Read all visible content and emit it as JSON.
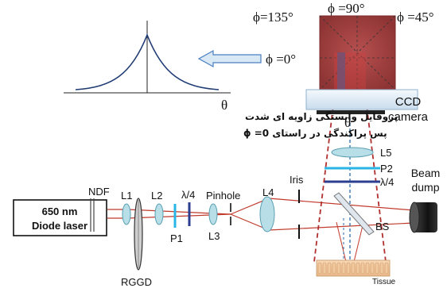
{
  "labels": {
    "laser_line1": "650 nm",
    "laser_line2": "Diode laser",
    "ndf": "NDF",
    "l1": "L1",
    "l2": "L2",
    "quarter_wave_1": "λ/4",
    "pinhole": "Pinhole",
    "l3": "L3",
    "p1": "P1",
    "l4": "L4",
    "iris": "Iris",
    "rggd": "RGGD",
    "ccd_line1": "CCD",
    "ccd_line2": "camera",
    "theta_beam": "θ",
    "l5": "L5",
    "p2": "P2",
    "quarter_wave_2": "λ/4",
    "beam_dump_line1": "Beam",
    "beam_dump_line2": "dump",
    "bs": "BS",
    "tissue": "Tissue"
  },
  "camera_angles": {
    "phi_135": "ϕ=135°",
    "phi_90": "ϕ =90°",
    "phi_45": "ϕ =45°",
    "phi_0": "ϕ =0°"
  },
  "profile_plot": {
    "axis_label": "θ",
    "caption_line1": "پروفایل وابستگی زاویه ای شدت",
    "caption_line2": "پس پراکندگی در راستای 0= ϕ"
  },
  "colors": {
    "beam": "#c0392b",
    "beam_dash": "#b03030",
    "lens_fill": "#b8dfe8",
    "lens_stroke": "#5a9fb2",
    "polarizer": "#29b6e6",
    "waveplate": "#2c3e8f",
    "arrow_fill": "#d9e8f5",
    "arrow_stroke": "#4a7fc1",
    "camera_image": "#9b3a3a",
    "center_dash": "#2b6cb0"
  }
}
